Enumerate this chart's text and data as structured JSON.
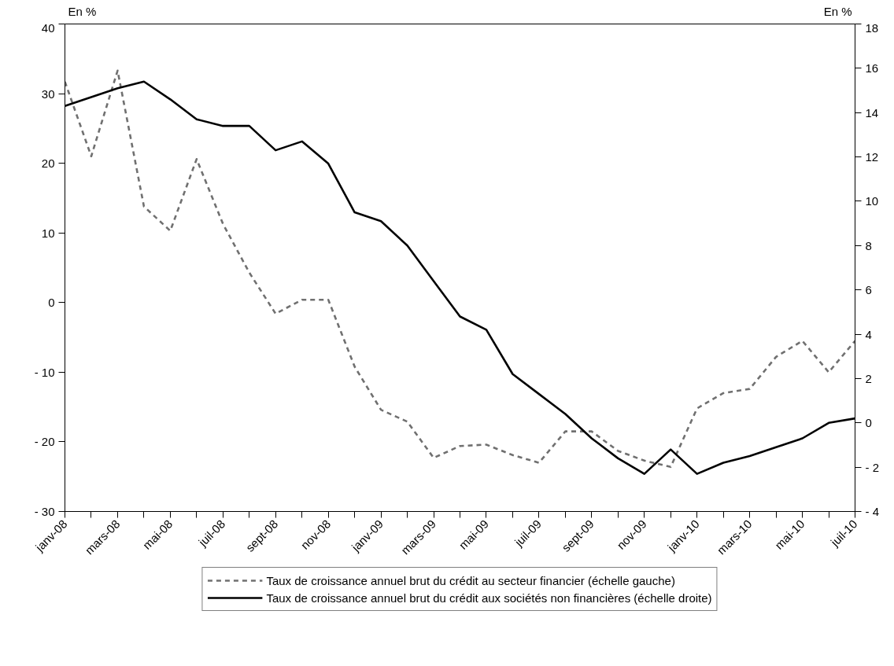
{
  "chart_data": {
    "type": "line",
    "ylabel": "En %",
    "y2label": "En %",
    "categories": [
      "janv-08",
      null,
      "mars-08",
      null,
      "mai-08",
      null,
      "juil-08",
      null,
      "sept-08",
      null,
      "nov-08",
      null,
      "janv-09",
      null,
      "mars-09",
      null,
      "mai-09",
      null,
      "juil-09",
      null,
      "sept-09",
      null,
      "nov-09",
      null,
      "janv-10",
      null,
      "mars-10",
      null,
      "mai-10",
      null,
      "juil-10"
    ],
    "series": [
      {
        "name": "Taux de croissance annuel brut du crédit au secteur financier (échelle gauche)",
        "color": "#707070",
        "line_style": "dashed",
        "values": [
          31.7,
          21.0,
          33.3,
          13.8,
          10.3,
          20.6,
          11.3,
          4.3,
          -1.6,
          0.4,
          0.4,
          -9.2,
          -15.4,
          -17.1,
          -22.3,
          -20.6,
          -20.4,
          -21.9,
          -23.0,
          -18.5,
          -18.5,
          -21.3,
          -22.7,
          -23.6,
          -15.2,
          -13.0,
          -12.4,
          -7.8,
          -5.5,
          -10.0,
          -5.5
        ]
      },
      {
        "name": "Taux de croissance annuel brut du crédit aux sociétés non financières (échelle droite)",
        "color": "#000000",
        "line_style": "solid",
        "axis": "y2",
        "values": [
          14.3,
          14.7,
          15.1,
          15.4,
          14.6,
          13.7,
          13.4,
          13.4,
          12.3,
          12.7,
          11.7,
          9.5,
          9.1,
          8.0,
          6.4,
          4.8,
          4.2,
          2.2,
          1.3,
          0.4,
          -0.7,
          -1.6,
          -2.3,
          -1.2,
          -2.3,
          -1.8,
          -1.5,
          -1.1,
          -0.7,
          0.0,
          0.2
        ]
      }
    ],
    "ylim": [
      -30,
      40
    ],
    "yticks": [
      {
        "value": -30,
        "label": "- 30"
      },
      {
        "value": -20,
        "label": "- 20"
      },
      {
        "value": -10,
        "label": "- 10"
      },
      0,
      10,
      20,
      30,
      40
    ],
    "y2lim": [
      -4,
      18
    ],
    "y2ticks": [
      {
        "value": -4,
        "label": "- 4"
      },
      {
        "value": -2,
        "label": "- 2"
      },
      0,
      2,
      4,
      6,
      8,
      10,
      12,
      14,
      16,
      18
    ],
    "grid": false,
    "legend": "bottom"
  }
}
